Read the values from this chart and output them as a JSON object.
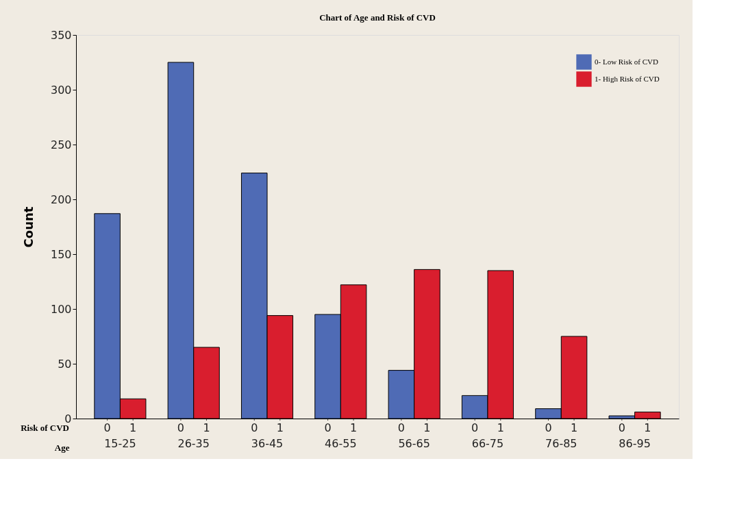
{
  "chart_data": {
    "type": "bar",
    "title": "Chart of Age and Risk of CVD",
    "ylabel": "Count",
    "xlabel": "Age",
    "categories": [
      "15-25",
      "26-35",
      "36-45",
      "46-55",
      "56-65",
      "66-75",
      "76-85",
      "86-95"
    ],
    "series": [
      {
        "name": "0- Low Risk of CVD",
        "color": "#4f6bb5",
        "values": [
          187,
          325,
          224,
          95,
          44,
          21,
          9,
          2.5
        ]
      },
      {
        "name": "1- High Risk of CVD",
        "color": "#d91e2e",
        "values": [
          18,
          65,
          94,
          122,
          136,
          135,
          75,
          6
        ]
      }
    ],
    "ylim": [
      0,
      350
    ],
    "yticks": [
      0,
      50,
      100,
      150,
      200,
      250,
      300,
      350
    ],
    "grid": false,
    "legend": "top right",
    "annotations": [
      "Risk of CVD",
      "0",
      "1",
      "0",
      "1",
      "0",
      "1",
      "0",
      "1",
      "0",
      "1",
      "0",
      "1",
      "0",
      "1",
      "0",
      "1"
    ]
  }
}
